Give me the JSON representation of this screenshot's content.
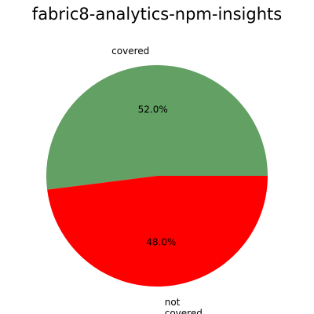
{
  "chart_data": {
    "type": "pie",
    "title": "fabric8-analytics-npm-insights",
    "slices": [
      {
        "label": "covered",
        "value": 52.0,
        "pct_label": "52.0%",
        "color": "#62a063"
      },
      {
        "label": "not\ncovered",
        "value": 48.0,
        "pct_label": "48.0%",
        "color": "#ff0000"
      }
    ],
    "start_angle_deg": 0,
    "direction": "counterclockwise"
  }
}
